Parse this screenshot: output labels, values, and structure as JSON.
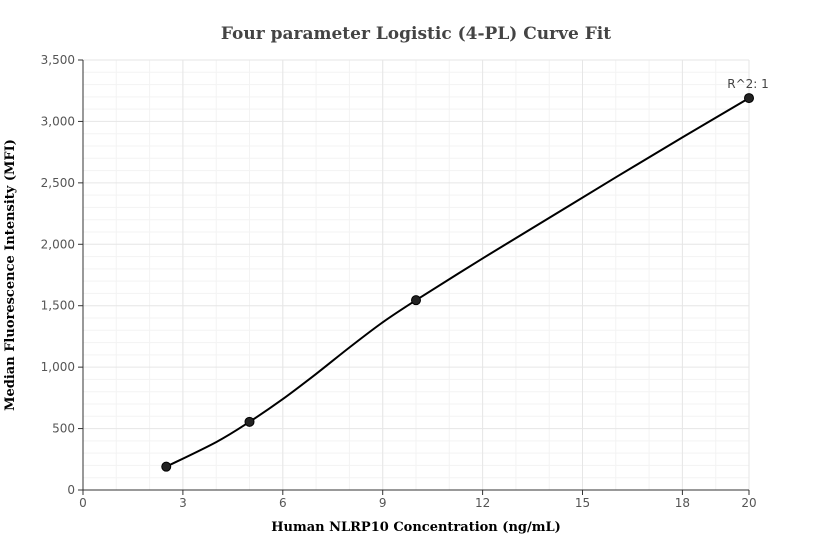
{
  "chart_data": {
    "type": "scatter",
    "title": "Four parameter Logistic (4-PL) Curve Fit",
    "xlabel": "Human NLRP10 Concentration (ng/mL)",
    "ylabel": "Median Fluorescence Intensity (MFI)",
    "xlim": [
      0,
      20
    ],
    "ylim": [
      0,
      3500
    ],
    "x_ticks": [
      0,
      3,
      6,
      9,
      12,
      15,
      18,
      20
    ],
    "y_ticks": [
      0,
      500,
      1000,
      1500,
      2000,
      2500,
      3000,
      3500
    ],
    "x_tick_labels": [
      "0",
      "3",
      "6",
      "9",
      "12",
      "15",
      "18",
      "20"
    ],
    "y_tick_labels": [
      "0",
      "500",
      "1,000",
      "1,500",
      "2,000",
      "2,500",
      "3,000",
      "3,500"
    ],
    "grid": true,
    "points": [
      {
        "x": 2.5,
        "y": 190
      },
      {
        "x": 5,
        "y": 555
      },
      {
        "x": 10,
        "y": 1545
      },
      {
        "x": 20,
        "y": 3190
      }
    ],
    "curve": [
      {
        "x": 2.5,
        "y": 190
      },
      {
        "x": 4,
        "y": 390
      },
      {
        "x": 5,
        "y": 555
      },
      {
        "x": 6,
        "y": 740
      },
      {
        "x": 7,
        "y": 945
      },
      {
        "x": 8,
        "y": 1160
      },
      {
        "x": 9,
        "y": 1365
      },
      {
        "x": 10,
        "y": 1545
      },
      {
        "x": 12,
        "y": 1885
      },
      {
        "x": 14,
        "y": 2215
      },
      {
        "x": 16,
        "y": 2545
      },
      {
        "x": 18,
        "y": 2870
      },
      {
        "x": 20,
        "y": 3190
      }
    ],
    "annotation": "R^2: 1",
    "colors": {
      "curve": "#000000",
      "point": "#222222"
    }
  }
}
